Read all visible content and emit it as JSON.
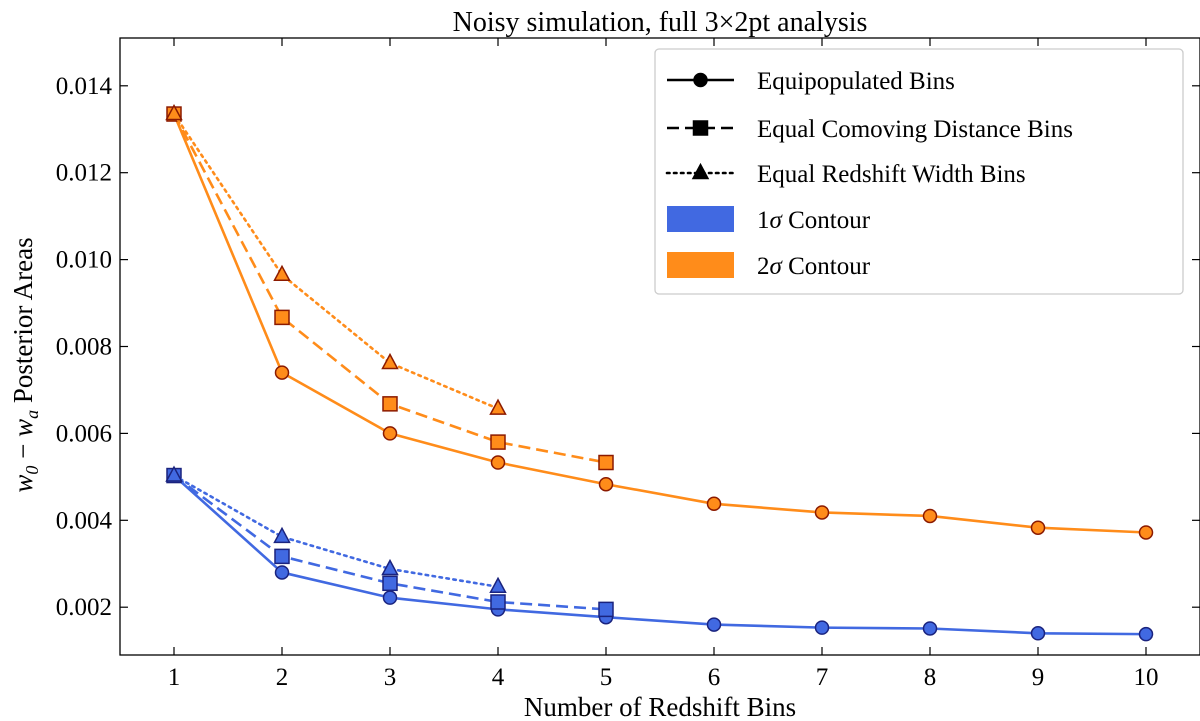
{
  "chart_data": {
    "type": "line",
    "title": "Noisy simulation, full 3×2pt analysis",
    "xlabel": "Number of Redshift Bins",
    "ylabel_parts": {
      "w": "w",
      "sub0": "0",
      "minus": " − ",
      "sub_a": "a",
      "rest": " Posterior Areas"
    },
    "xlim": [
      0.5,
      10.5
    ],
    "ylim": [
      0.0009,
      0.0151
    ],
    "xticks": [
      1,
      2,
      3,
      4,
      5,
      6,
      7,
      8,
      9,
      10
    ],
    "yticks": [
      0.002,
      0.004,
      0.006,
      0.008,
      0.01,
      0.012,
      0.014
    ],
    "ytick_labels": [
      "0.002",
      "0.004",
      "0.006",
      "0.008",
      "0.010",
      "0.012",
      "0.014"
    ],
    "colors": {
      "one_sigma": "#4169e1",
      "two_sigma": "#ff8c1a",
      "one_sigma_edge": "#1a237e",
      "two_sigma_edge": "#8b1a00"
    },
    "legend": {
      "position": "top-right",
      "entries": [
        {
          "label": "Equipopulated Bins",
          "style": "solid",
          "marker": "circle"
        },
        {
          "label": "Equal Comoving Distance Bins",
          "style": "dashed",
          "marker": "square"
        },
        {
          "label": "Equal Redshift Width Bins",
          "style": "dotted",
          "marker": "triangle"
        },
        {
          "label_main": "1",
          "label_sigma": "σ",
          "label_rest": " Contour",
          "patch": "one_sigma"
        },
        {
          "label_main": "2",
          "label_sigma": "σ",
          "label_rest": " Contour",
          "patch": "two_sigma"
        }
      ]
    },
    "series": [
      {
        "contour": "two_sigma",
        "binning": "Equipopulated Bins",
        "style": "solid",
        "marker": "circle",
        "x": [
          1,
          2,
          3,
          4,
          5,
          6,
          7,
          8,
          9,
          10
        ],
        "y": [
          0.01335,
          0.0074,
          0.006,
          0.00533,
          0.00483,
          0.00438,
          0.00418,
          0.0041,
          0.00383,
          0.00372
        ]
      },
      {
        "contour": "two_sigma",
        "binning": "Equal Comoving Distance Bins",
        "style": "dashed",
        "marker": "square",
        "x": [
          1,
          2,
          3,
          4,
          5
        ],
        "y": [
          0.01335,
          0.00867,
          0.00668,
          0.0058,
          0.00533
        ]
      },
      {
        "contour": "two_sigma",
        "binning": "Equal Redshift Width Bins",
        "style": "dotted",
        "marker": "triangle",
        "x": [
          1,
          2,
          3,
          4
        ],
        "y": [
          0.01335,
          0.00965,
          0.00762,
          0.00657
        ]
      },
      {
        "contour": "one_sigma",
        "binning": "Equipopulated Bins",
        "style": "solid",
        "marker": "circle",
        "x": [
          1,
          2,
          3,
          4,
          5,
          6,
          7,
          8,
          9,
          10
        ],
        "y": [
          0.00503,
          0.0028,
          0.00222,
          0.00195,
          0.00177,
          0.0016,
          0.00153,
          0.00151,
          0.0014,
          0.00138
        ]
      },
      {
        "contour": "one_sigma",
        "binning": "Equal Comoving Distance Bins",
        "style": "dashed",
        "marker": "square",
        "x": [
          1,
          2,
          3,
          4,
          5
        ],
        "y": [
          0.00503,
          0.00317,
          0.00255,
          0.00212,
          0.00195
        ]
      },
      {
        "contour": "one_sigma",
        "binning": "Equal Redshift Width Bins",
        "style": "dotted",
        "marker": "triangle",
        "x": [
          1,
          2,
          3,
          4
        ],
        "y": [
          0.00503,
          0.00362,
          0.00288,
          0.00247
        ]
      }
    ]
  }
}
